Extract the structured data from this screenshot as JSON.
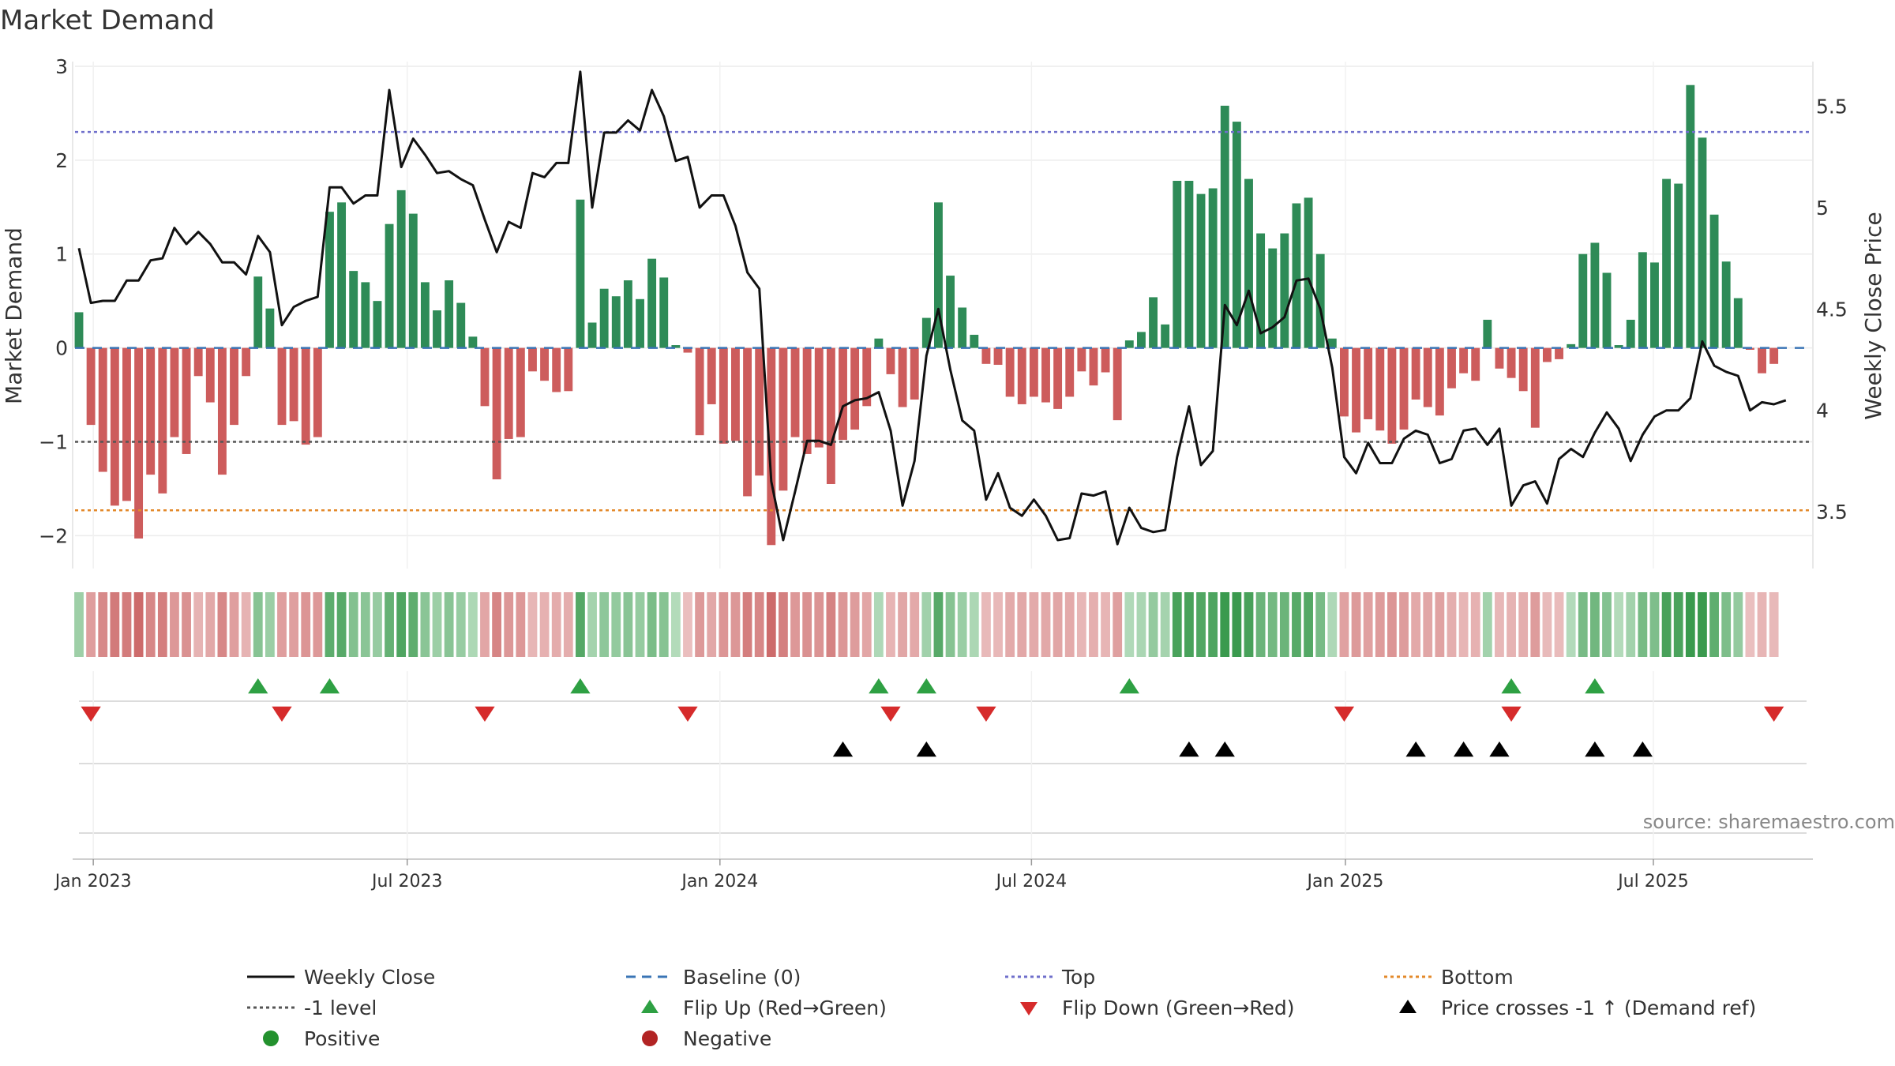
{
  "chart_data": {
    "type": "bar",
    "title": "Market Demand",
    "ylabel": "Market Demand",
    "y2label": "Weekly Close Price",
    "ylim": [
      -2.35,
      3.05
    ],
    "y2lim": [
      3.22,
      5.72
    ],
    "yticks": [
      {
        "v": 3,
        "label": "3"
      },
      {
        "v": 2,
        "label": "2"
      },
      {
        "v": 1,
        "label": "1"
      },
      {
        "v": 0,
        "label": "0"
      },
      {
        "v": -1,
        "label": "−1"
      },
      {
        "v": -2,
        "label": "−2"
      }
    ],
    "y2ticks": [
      {
        "v": 5.5,
        "label": "5.5"
      },
      {
        "v": 5,
        "label": "5"
      },
      {
        "v": 4.5,
        "label": "4.5"
      },
      {
        "v": 4,
        "label": "4"
      },
      {
        "v": 3.5,
        "label": "3.5"
      }
    ],
    "xticks": [
      {
        "w": 1.2,
        "label": "Jan 2023"
      },
      {
        "w": 27.5,
        "label": "Jul 2023"
      },
      {
        "w": 53.7,
        "label": "Jan 2024"
      },
      {
        "w": 79.8,
        "label": "Jul 2024"
      },
      {
        "w": 106.1,
        "label": "Jan 2025"
      },
      {
        "w": 131.9,
        "label": "Jul 2025"
      }
    ],
    "week_range": [
      0,
      145
    ],
    "top_level": 2.3,
    "bottom_level": -1.73,
    "minus1_level": -1,
    "demand": [
      0.38,
      -0.82,
      -1.32,
      -1.68,
      -1.63,
      -2.03,
      -1.35,
      -1.55,
      -0.95,
      -1.13,
      -0.3,
      -0.58,
      -1.35,
      -0.82,
      -0.3,
      0.76,
      0.42,
      -0.82,
      -0.78,
      -1.03,
      -0.95,
      1.45,
      1.55,
      0.82,
      0.7,
      0.5,
      1.32,
      1.68,
      1.43,
      0.7,
      0.4,
      0.72,
      0.48,
      0.12,
      -0.62,
      -1.4,
      -0.97,
      -0.95,
      -0.25,
      -0.35,
      -0.47,
      -0.46,
      1.58,
      0.27,
      0.63,
      0.55,
      0.72,
      0.52,
      0.95,
      0.75,
      0.03,
      -0.05,
      -0.93,
      -0.6,
      -1.02,
      -0.99,
      -1.58,
      -1.36,
      -2.1,
      -1.52,
      -0.95,
      -1.13,
      -1.06,
      -1.45,
      -0.98,
      -0.87,
      -0.62,
      0.1,
      -0.28,
      -0.63,
      -0.55,
      0.32,
      1.55,
      0.77,
      0.43,
      0.14,
      -0.17,
      -0.18,
      -0.52,
      -0.6,
      -0.52,
      -0.58,
      -0.65,
      -0.52,
      -0.25,
      -0.4,
      -0.26,
      -0.77,
      0.08,
      0.17,
      0.54,
      0.25,
      1.78,
      1.78,
      1.64,
      1.7,
      2.58,
      2.41,
      1.8,
      1.22,
      1.06,
      1.22,
      1.54,
      1.6,
      1.0,
      0.1,
      -0.73,
      -0.9,
      -0.76,
      -0.88,
      -1.02,
      -0.87,
      -0.55,
      -0.63,
      -0.72,
      -0.43,
      -0.27,
      -0.35,
      0.3,
      -0.22,
      -0.32,
      -0.46,
      -0.85,
      -0.15,
      -0.12,
      0.04,
      1.0,
      1.12,
      0.8,
      0.03,
      0.3,
      1.02,
      0.91,
      1.8,
      1.75,
      2.8,
      2.24,
      1.42,
      0.92,
      0.53,
      -0.02,
      -0.27,
      -0.17
    ],
    "close": [
      4.8,
      4.53,
      4.54,
      4.54,
      4.64,
      4.64,
      4.74,
      4.75,
      4.9,
      4.82,
      4.88,
      4.82,
      4.73,
      4.73,
      4.67,
      4.86,
      4.78,
      4.42,
      4.51,
      4.54,
      4.56,
      5.1,
      5.1,
      5.02,
      5.06,
      5.06,
      5.58,
      5.2,
      5.34,
      5.26,
      5.17,
      5.18,
      5.14,
      5.11,
      4.94,
      4.78,
      4.93,
      4.9,
      5.17,
      5.15,
      5.22,
      5.22,
      5.67,
      5.0,
      5.37,
      5.37,
      5.43,
      5.38,
      5.58,
      5.45,
      5.23,
      5.25,
      5.0,
      5.06,
      5.06,
      4.91,
      4.68,
      4.6,
      3.65,
      3.36,
      3.6,
      3.85,
      3.85,
      3.83,
      4.02,
      4.05,
      4.06,
      4.09,
      3.9,
      3.53,
      3.75,
      4.27,
      4.5,
      4.2,
      3.95,
      3.9,
      3.56,
      3.69,
      3.52,
      3.48,
      3.56,
      3.48,
      3.36,
      3.37,
      3.59,
      3.58,
      3.6,
      3.34,
      3.52,
      3.42,
      3.4,
      3.41,
      3.77,
      4.02,
      3.73,
      3.8,
      4.52,
      4.42,
      4.59,
      4.38,
      4.41,
      4.46,
      4.64,
      4.65,
      4.5,
      4.21,
      3.77,
      3.69,
      3.84,
      3.74,
      3.74,
      3.86,
      3.9,
      3.88,
      3.74,
      3.76,
      3.9,
      3.91,
      3.83,
      3.91,
      3.53,
      3.63,
      3.65,
      3.54,
      3.76,
      3.81,
      3.77,
      3.89,
      3.99,
      3.91,
      3.75,
      3.88,
      3.97,
      4.0,
      4.0,
      4.06,
      4.34,
      4.22,
      4.19,
      4.17,
      4.0,
      4.04,
      4.03,
      4.05
    ],
    "flip_up_weeks": [
      15,
      21,
      42,
      67,
      71,
      88,
      120,
      127
    ],
    "flip_down_weeks": [
      1,
      17,
      34,
      51,
      68,
      76,
      106,
      120,
      142
    ],
    "price_cross_weeks": [
      64,
      71,
      93,
      96,
      112,
      116,
      119,
      127,
      131
    ],
    "source": "source: sharemaestro.com",
    "legend": [
      {
        "label": "Weekly Close",
        "kind": "line-solid",
        "color": "#111111"
      },
      {
        "label": "Baseline (0)",
        "kind": "line-dash",
        "color": "#3a74b5"
      },
      {
        "label": "Top",
        "kind": "line-dot",
        "color": "#6f6fcb"
      },
      {
        "label": "Bottom",
        "kind": "line-dot",
        "color": "#e3892a"
      },
      {
        "label": "-1 level",
        "kind": "line-dot",
        "color": "#555555"
      },
      {
        "label": "Flip Up (Red→Green)",
        "kind": "tri-up",
        "color": "#2ea043"
      },
      {
        "label": "Flip Down (Green→Red)",
        "kind": "tri-down",
        "color": "#d62b2b"
      },
      {
        "label": "Price crosses -1 ↑ (Demand ref)",
        "kind": "tri-up",
        "color": "#000000"
      },
      {
        "label": "Positive",
        "kind": "circle",
        "color": "#23912e"
      },
      {
        "label": "Negative",
        "kind": "circle",
        "color": "#b22424"
      }
    ],
    "colors": {
      "positive": "#2e8b57",
      "negative": "#cd5c5c",
      "close": "#111111",
      "baseline": "#3a74b5",
      "top": "#6f6fcb",
      "bottom": "#e3892a",
      "minus1": "#555555",
      "flip_up": "#2ea043",
      "flip_down": "#d62b2b",
      "cross": "#000000"
    }
  }
}
